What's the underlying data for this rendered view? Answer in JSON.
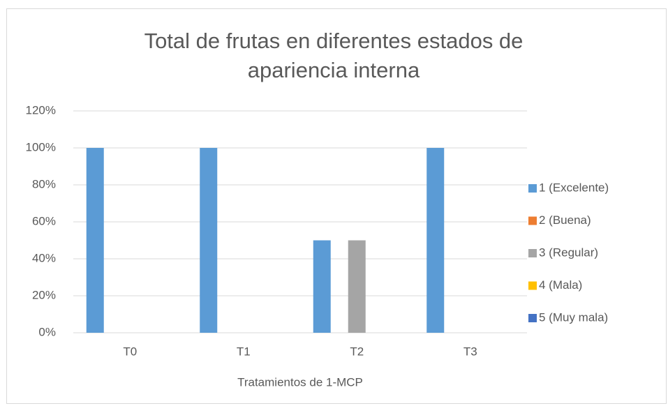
{
  "chart_data": {
    "type": "bar",
    "title": "Total de frutas en diferentes estados de apariencia interna",
    "x_label": "Tratamientos de 1-MCP",
    "categories": [
      "T0",
      "T1",
      "T2",
      "T3"
    ],
    "series": [
      {
        "name": "1 (Excelente)",
        "color": "#5b9bd5",
        "values": [
          100,
          100,
          50,
          100
        ]
      },
      {
        "name": "2 (Buena)",
        "color": "#ed7d31",
        "values": [
          0,
          0,
          0,
          0
        ]
      },
      {
        "name": "3 (Regular)",
        "color": "#a5a5a5",
        "values": [
          0,
          0,
          50,
          0
        ]
      },
      {
        "name": "4 (Mala)",
        "color": "#ffc000",
        "values": [
          0,
          0,
          0,
          0
        ]
      },
      {
        "name": "5 (Muy mala)",
        "color": "#4472c4",
        "values": [
          0,
          0,
          0,
          0
        ]
      }
    ],
    "ylim": [
      0,
      120
    ],
    "yticks": [
      {
        "value": 0,
        "label": "0%"
      },
      {
        "value": 20,
        "label": "20%"
      },
      {
        "value": 40,
        "label": "40%"
      },
      {
        "value": 60,
        "label": "60%"
      },
      {
        "value": 80,
        "label": "80%"
      },
      {
        "value": 100,
        "label": "100%"
      },
      {
        "value": 120,
        "label": "120%"
      }
    ],
    "grid": true,
    "legend": "right"
  }
}
